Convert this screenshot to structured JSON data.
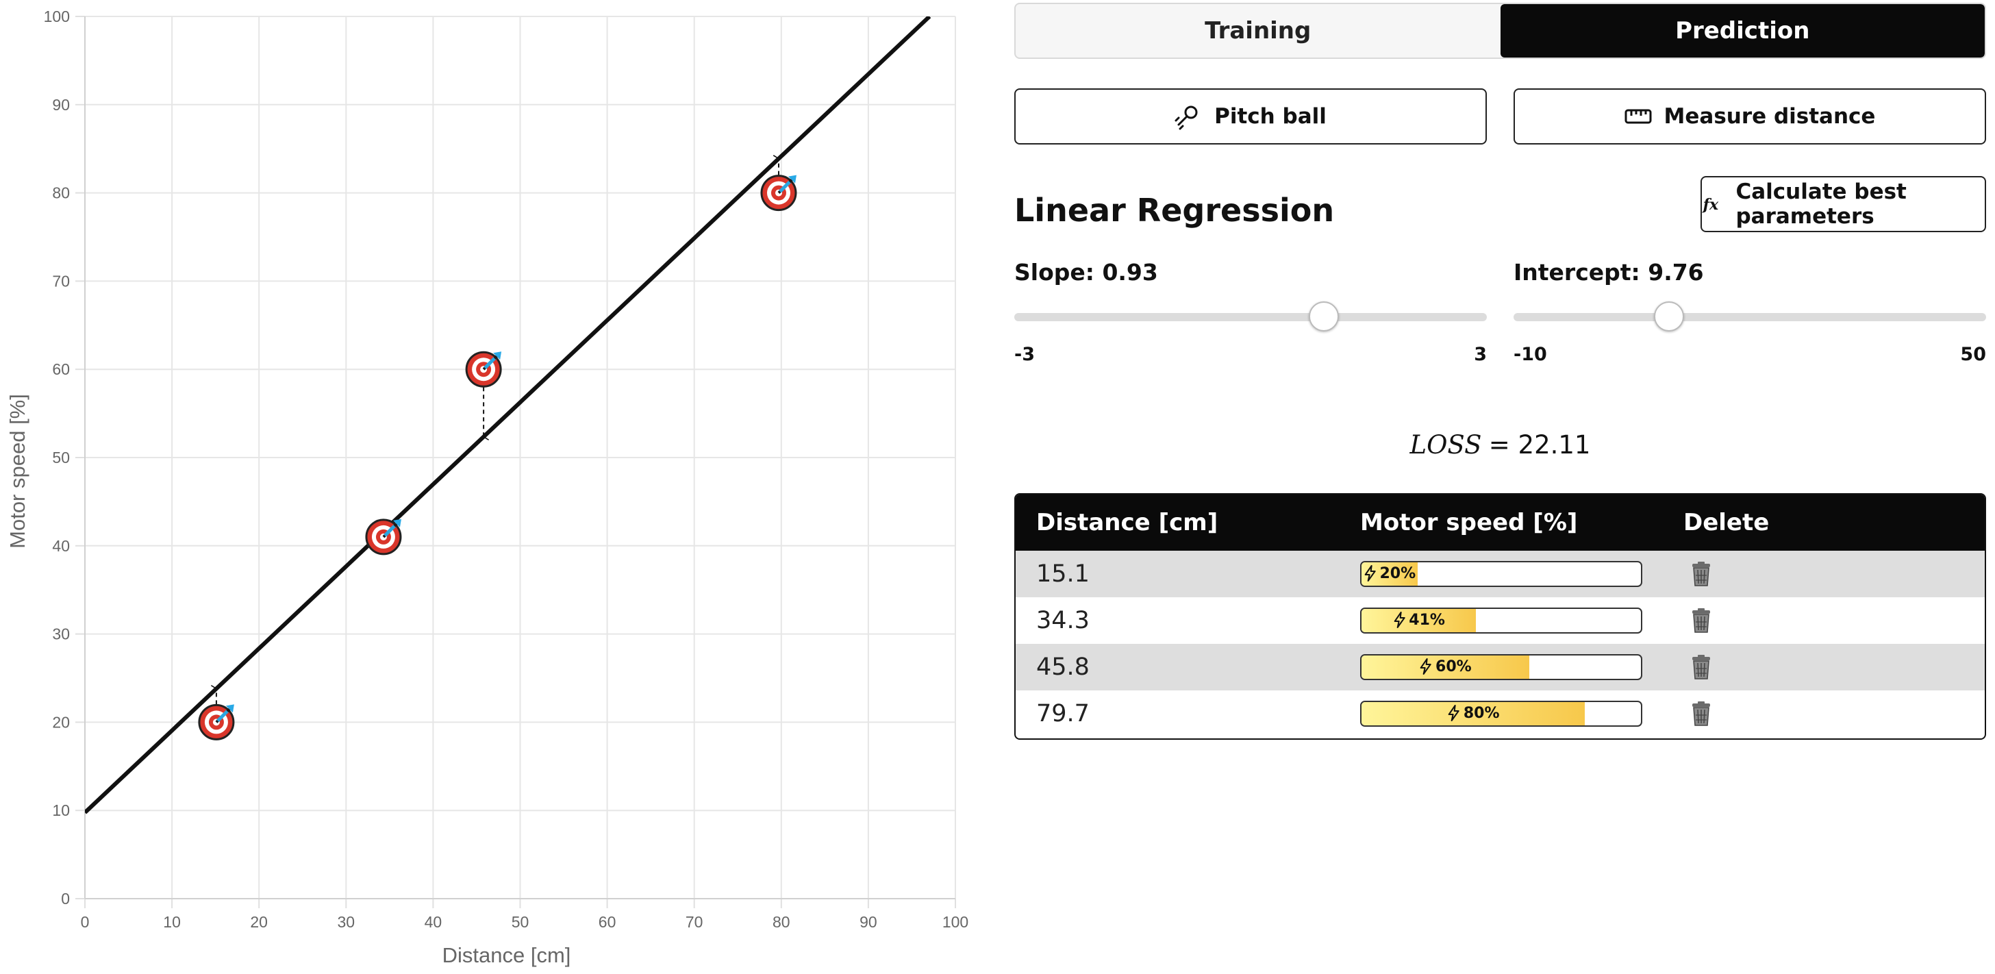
{
  "tabs": [
    {
      "label": "Training",
      "active": false
    },
    {
      "label": "Prediction",
      "active": true
    }
  ],
  "actions": {
    "pitch_label": "Pitch ball",
    "pitch_icon": "pitch-icon",
    "measure_label": "Measure distance",
    "measure_icon": "ruler-icon",
    "calc_label": "Calculate best parameters",
    "calc_icon": "function-icon"
  },
  "regression": {
    "title": "Linear Regression",
    "slope": {
      "label": "Slope: 0.93",
      "value": 0.93,
      "min": -3,
      "max": 3,
      "min_label": "-3",
      "max_label": "3"
    },
    "intercept": {
      "label": "Intercept: 9.76",
      "value": 9.76,
      "min": -10,
      "max": 50,
      "min_label": "-10",
      "max_label": "50"
    }
  },
  "loss": {
    "name": "LOSS",
    "value": "= 22.11"
  },
  "table": {
    "headers": [
      "Distance [cm]",
      "Motor speed [%]",
      "Delete"
    ],
    "rows": [
      {
        "distance": "15.1",
        "speed": 20,
        "speed_label": "20%"
      },
      {
        "distance": "34.3",
        "speed": 41,
        "speed_label": "41%"
      },
      {
        "distance": "45.8",
        "speed": 60,
        "speed_label": "60%"
      },
      {
        "distance": "79.7",
        "speed": 80,
        "speed_label": "80%"
      }
    ],
    "bolt_icon": "lightning-icon",
    "delete_icon": "trash-icon"
  },
  "colors": {
    "accent": "#0a0a0a",
    "grid": "#e6e6e6",
    "bar_fill_start": "#fff59a",
    "bar_fill_end": "#f7c84b"
  },
  "chart_data": {
    "type": "scatter",
    "xlabel": "Distance   [cm]",
    "ylabel": "Motor speed   [%]",
    "xlim": [
      0,
      100
    ],
    "ylim": [
      0,
      100
    ],
    "xticks": [
      0,
      10,
      20,
      30,
      40,
      50,
      60,
      70,
      80,
      90,
      100
    ],
    "yticks": [
      0,
      10,
      20,
      30,
      40,
      50,
      60,
      70,
      80,
      90,
      100
    ],
    "grid": true,
    "points": [
      {
        "x": 15.1,
        "y": 20
      },
      {
        "x": 34.3,
        "y": 41
      },
      {
        "x": 45.8,
        "y": 60
      },
      {
        "x": 79.7,
        "y": 80
      }
    ],
    "line": {
      "slope": 0.93,
      "intercept": 9.76
    },
    "marker_icon": "target-icon"
  }
}
